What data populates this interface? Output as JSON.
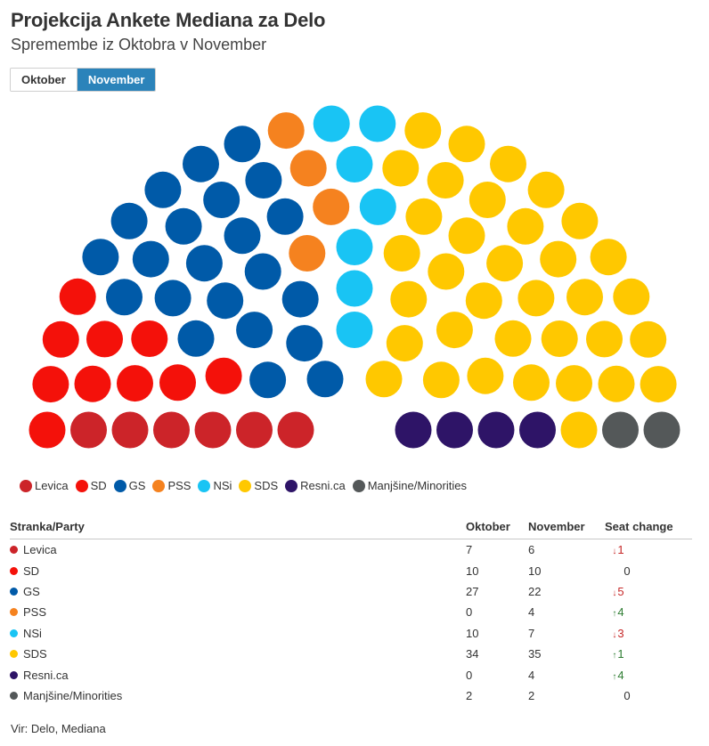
{
  "header": {
    "title": "Projekcija Ankete Mediana za Delo",
    "subtitle": "Spremembe iz Oktobra v November"
  },
  "toggle": {
    "options": [
      "Oktober",
      "November"
    ],
    "selected": "November"
  },
  "chart_data": {
    "type": "parliament",
    "total_seats": 90,
    "shown_period": "November",
    "parties": [
      {
        "name": "Levica",
        "color": "#cc2429",
        "oktober": 7,
        "november": 6
      },
      {
        "name": "SD",
        "color": "#f4110a",
        "oktober": 10,
        "november": 10
      },
      {
        "name": "GS",
        "color": "#005aa8",
        "oktober": 27,
        "november": 22
      },
      {
        "name": "PSS",
        "color": "#f5821f",
        "oktober": 0,
        "november": 4
      },
      {
        "name": "NSi",
        "color": "#19c4f4",
        "oktober": 10,
        "november": 7
      },
      {
        "name": "SDS",
        "color": "#ffc800",
        "oktober": 34,
        "november": 35
      },
      {
        "name": "Resni.ca",
        "color": "#2e1467",
        "oktober": 0,
        "november": 4
      },
      {
        "name": "Manjšine/Minorities",
        "color": "#545859",
        "oktober": 2,
        "november": 2
      }
    ],
    "legend_position": "bottom-left"
  },
  "table": {
    "headers": {
      "party": "Stranka/Party",
      "oktober": "Oktober",
      "november": "November",
      "change": "Seat change"
    },
    "rows": [
      {
        "party": "Levica",
        "oktober": "7",
        "november": "6",
        "change": "1",
        "direction": "down"
      },
      {
        "party": "SD",
        "oktober": "10",
        "november": "10",
        "change": "0",
        "direction": "none"
      },
      {
        "party": "GS",
        "oktober": "27",
        "november": "22",
        "change": "5",
        "direction": "down"
      },
      {
        "party": "PSS",
        "oktober": "0",
        "november": "4",
        "change": "4",
        "direction": "up"
      },
      {
        "party": "NSi",
        "oktober": "10",
        "november": "7",
        "change": "3",
        "direction": "down"
      },
      {
        "party": "SDS",
        "oktober": "34",
        "november": "35",
        "change": "1",
        "direction": "up"
      },
      {
        "party": "Resni.ca",
        "oktober": "0",
        "november": "4",
        "change": "4",
        "direction": "up"
      },
      {
        "party": "Manjšine/Minorities",
        "oktober": "2",
        "november": "2",
        "change": "0",
        "direction": "none"
      }
    ]
  },
  "source": "Vir: Delo, Mediana"
}
